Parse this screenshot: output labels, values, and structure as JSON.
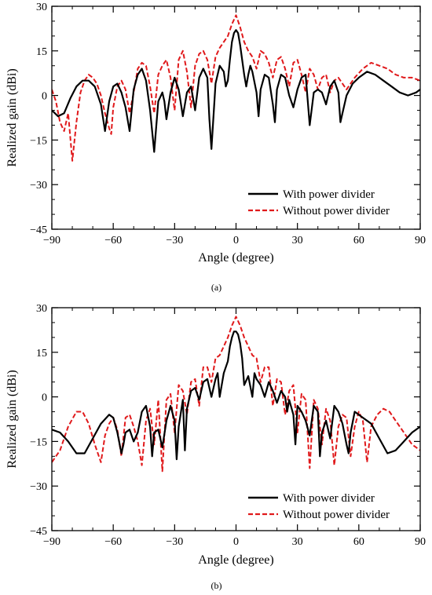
{
  "chart_data": [
    {
      "type": "line",
      "panel_label": "(a)",
      "xlabel": "Angle (degree)",
      "ylabel": "Realized gain (dBi)",
      "xlim": [
        -90,
        90
      ],
      "ylim": [
        -45,
        30
      ],
      "xticks": [
        -90,
        -60,
        -30,
        0,
        30,
        60,
        90
      ],
      "yticks": [
        -45,
        -30,
        -15,
        0,
        15,
        30
      ],
      "xtick_labels": [
        "−90",
        "−60",
        "−30",
        "0",
        "30",
        "60",
        "90"
      ],
      "ytick_labels": [
        "−45",
        "−30",
        "−15",
        "0",
        "15",
        "30"
      ],
      "legend_position": "lower-right",
      "series": [
        {
          "name": "With power divider",
          "color": "#000000",
          "style": "solid",
          "x": [
            -90,
            -87,
            -84,
            -81,
            -78,
            -75,
            -72,
            -69,
            -66,
            -64,
            -62,
            -60,
            -58,
            -56,
            -54,
            -52,
            -50,
            -48,
            -46,
            -44,
            -42,
            -40,
            -38,
            -36,
            -35,
            -34,
            -32,
            -30,
            -28,
            -26,
            -25,
            -24,
            -22,
            -20,
            -18,
            -16,
            -14,
            -13,
            -12,
            -10,
            -8,
            -6,
            -5,
            -4,
            -3,
            -2,
            -1,
            0,
            1,
            2,
            3,
            4,
            5,
            6,
            7,
            8,
            10,
            11,
            12,
            14,
            16,
            18,
            19,
            20,
            22,
            24,
            26,
            28,
            30,
            32,
            34,
            36,
            38,
            40,
            42,
            44,
            46,
            48,
            50,
            51,
            52,
            54,
            57,
            60,
            64,
            68,
            72,
            76,
            80,
            84,
            88,
            90
          ],
          "y": [
            -5,
            -7,
            -6,
            -1,
            3,
            5,
            5,
            3,
            -3,
            -12,
            -2,
            3,
            4,
            1,
            -4,
            -12,
            2,
            7,
            9,
            5,
            -5,
            -19,
            -2,
            1,
            -2,
            -8,
            1,
            6,
            2,
            -7,
            -3,
            1,
            3,
            -5,
            6,
            9,
            6,
            -8,
            -18,
            4,
            10,
            8,
            3,
            5,
            12,
            18,
            21,
            22,
            21,
            17,
            12,
            7,
            3,
            7,
            10,
            8,
            1,
            -7,
            2,
            7,
            6,
            -3,
            -9,
            2,
            7,
            6,
            0,
            -4,
            2,
            6,
            7,
            -10,
            1,
            2,
            1,
            -3,
            3,
            5,
            1,
            -9,
            -6,
            0,
            4,
            6,
            8,
            7,
            5,
            3,
            1,
            0,
            1,
            2
          ]
        },
        {
          "name": "Without power divider",
          "color": "#e0191b",
          "style": "dashed",
          "x": [
            -90,
            -88,
            -86,
            -84,
            -82,
            -80,
            -78,
            -76,
            -74,
            -72,
            -70,
            -68,
            -66,
            -64,
            -62,
            -61,
            -60,
            -58,
            -56,
            -54,
            -52,
            -50,
            -48,
            -46,
            -44,
            -42,
            -40,
            -38,
            -36,
            -34,
            -32,
            -30,
            -28,
            -26,
            -24,
            -22,
            -20,
            -18,
            -16,
            -14,
            -12,
            -10,
            -8,
            -6,
            -4,
            -2,
            0,
            2,
            4,
            6,
            8,
            10,
            12,
            14,
            16,
            18,
            20,
            22,
            24,
            26,
            28,
            30,
            32,
            34,
            36,
            38,
            40,
            42,
            44,
            46,
            48,
            50,
            54,
            58,
            62,
            66,
            70,
            74,
            78,
            82,
            86,
            90
          ],
          "y": [
            2,
            -2,
            -9,
            -12,
            -6,
            -22,
            -9,
            1,
            5,
            7,
            6,
            4,
            0,
            -6,
            -11,
            -13,
            -4,
            3,
            5,
            2,
            -6,
            1,
            9,
            11,
            10,
            3,
            -6,
            7,
            10,
            12,
            6,
            -5,
            12,
            15,
            8,
            -4,
            10,
            14,
            15,
            12,
            4,
            13,
            16,
            18,
            20,
            24,
            27,
            23,
            18,
            15,
            13,
            9,
            15,
            14,
            11,
            6,
            12,
            13,
            9,
            3,
            11,
            12,
            7,
            1,
            9,
            7,
            2,
            6,
            7,
            1,
            5,
            6,
            2,
            6,
            9,
            11,
            10,
            9,
            7,
            6,
            6,
            5
          ]
        }
      ]
    },
    {
      "type": "line",
      "panel_label": "(b)",
      "xlabel": "Angle (degree)",
      "ylabel": "Realized gain (dBi)",
      "xlim": [
        -90,
        90
      ],
      "ylim": [
        -45,
        30
      ],
      "xticks": [
        -90,
        -60,
        -30,
        0,
        30,
        60,
        90
      ],
      "yticks": [
        -45,
        -30,
        -15,
        0,
        15,
        30
      ],
      "xtick_labels": [
        "−90",
        "−60",
        "−30",
        "0",
        "30",
        "60",
        "90"
      ],
      "ytick_labels": [
        "−45",
        "−30",
        "−15",
        "0",
        "15",
        "30"
      ],
      "legend_position": "lower-right",
      "series": [
        {
          "name": "With power divider",
          "color": "#000000",
          "style": "solid",
          "x": [
            -90,
            -86,
            -82,
            -78,
            -74,
            -70,
            -66,
            -62,
            -60,
            -58,
            -56,
            -55,
            -54,
            -52,
            -50,
            -48,
            -46,
            -44,
            -42,
            -41,
            -40,
            -38,
            -36,
            -34,
            -32,
            -30,
            -29,
            -28,
            -26,
            -25,
            -24,
            -22,
            -20,
            -18,
            -16,
            -14,
            -12,
            -10,
            -9,
            -8,
            -6,
            -4,
            -3,
            -2,
            -1,
            0,
            1,
            2,
            3,
            4,
            6,
            8,
            9,
            10,
            12,
            14,
            16,
            18,
            20,
            22,
            24,
            25,
            26,
            28,
            29,
            30,
            32,
            34,
            36,
            38,
            40,
            41,
            42,
            44,
            46,
            48,
            50,
            52,
            54,
            55,
            56,
            58,
            60,
            62,
            66,
            70,
            74,
            78,
            82,
            86,
            90
          ],
          "y": [
            -11,
            -12,
            -15,
            -19,
            -19,
            -14,
            -9,
            -6,
            -7,
            -12,
            -19,
            -16,
            -12,
            -11,
            -15,
            -12,
            -5,
            -3,
            -10,
            -20,
            -12,
            -11,
            -17,
            -8,
            -3,
            -8,
            -21,
            -10,
            -1,
            -18,
            -4,
            2,
            3,
            -1,
            5,
            6,
            0,
            6,
            8,
            0,
            8,
            12,
            17,
            20,
            22,
            22,
            21,
            18,
            13,
            4,
            7,
            0,
            8,
            6,
            4,
            0,
            5,
            2,
            -2,
            2,
            0,
            -5,
            -1,
            -6,
            -16,
            -3,
            -5,
            -8,
            -13,
            -3,
            -5,
            -20,
            -12,
            -8,
            -14,
            -3,
            -5,
            -9,
            -16,
            -19,
            -12,
            -5,
            -6,
            -7,
            -9,
            -14,
            -19,
            -18,
            -15,
            -12,
            -10
          ]
        },
        {
          "name": "Without power divider",
          "color": "#e0191b",
          "style": "dashed",
          "x": [
            -90,
            -86,
            -82,
            -78,
            -75,
            -72,
            -69,
            -66,
            -64,
            -62,
            -60,
            -58,
            -56,
            -54,
            -52,
            -50,
            -48,
            -46,
            -44,
            -42,
            -40,
            -38,
            -36,
            -34,
            -32,
            -30,
            -28,
            -26,
            -24,
            -22,
            -20,
            -18,
            -16,
            -14,
            -12,
            -10,
            -8,
            -6,
            -4,
            -2,
            0,
            2,
            4,
            6,
            8,
            10,
            12,
            14,
            16,
            18,
            20,
            22,
            24,
            26,
            28,
            30,
            32,
            34,
            36,
            38,
            40,
            42,
            44,
            46,
            48,
            50,
            52,
            54,
            56,
            58,
            60,
            62,
            64,
            66,
            69,
            72,
            75,
            78,
            82,
            86,
            90
          ],
          "y": [
            -22,
            -18,
            -10,
            -5,
            -5,
            -9,
            -16,
            -22,
            -13,
            -9,
            -7,
            -11,
            -20,
            -7,
            -6,
            -10,
            -15,
            -23,
            -8,
            -4,
            -16,
            -1,
            -25,
            -1,
            1,
            -12,
            4,
            2,
            -6,
            5,
            6,
            -3,
            10,
            10,
            5,
            13,
            14,
            17,
            20,
            24,
            27,
            24,
            20,
            17,
            14,
            13,
            5,
            10,
            10,
            -3,
            6,
            5,
            -6,
            2,
            4,
            -12,
            1,
            -1,
            -24,
            -1,
            -4,
            -16,
            -4,
            -8,
            -23,
            -10,
            -6,
            -7,
            -20,
            -10,
            -5,
            -8,
            -22,
            -10,
            -6,
            -4,
            -5,
            -8,
            -12,
            -16,
            -18
          ]
        }
      ]
    }
  ]
}
